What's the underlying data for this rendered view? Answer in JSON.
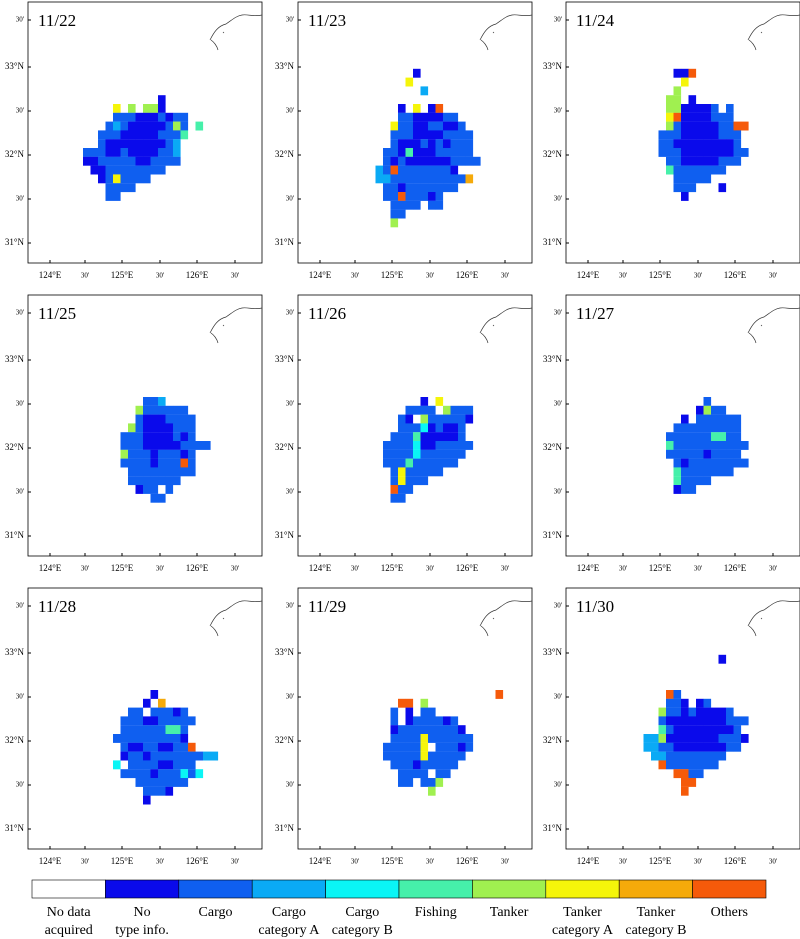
{
  "panels": [
    {
      "date": "11/22",
      "grid": [
        "",
        "",
        "",
        "",
        "..........1",
        "....7.6.661",
        "....2221112122",
        "...23211111262.5",
        "..222111112225",
        "..21111111123",
        "2221121111223",
        "1122222112222",
        ".1122222222",
        "..1272222",
        "...2222",
        "...22"
      ]
    },
    {
      "date": "11/23",
      "grid": [
        "",
        "........1",
        ".......7",
        ".........3",
        "",
        "......1.7.19",
        "......22111122",
        ".....7221122112",
        ".....22211112222",
        ".....21112121222",
        "....221511122222",
        "....2121111112222",
        "...32922222221",
        "...3322222222228",
        "....2212222222",
        "....22922212",
        ".....2222.22",
        ".....22",
        ".....6"
      ]
    },
    {
      "date": "11/24",
      "grid": [
        "",
        ".......119",
        "........7",
        ".......6",
        "......66.1",
        "......6611112.2",
        "......791111222",
        "......62111112299",
        ".....22211111222",
        ".....22111111112",
        ".....222111111122",
        "......2211111222",
        "......52222222",
        ".......22222",
        ".......222...1",
        "........1"
      ]
    },
    {
      "date": "11/25",
      "grid": [
        "",
        "",
        "",
        "",
        "",
        "........223",
        ".......6222222",
        ".......21112222",
        "......621111222",
        ".....2221111212",
        ".....222111112222",
        ".....6222122212",
        ".....2222122292",
        "......222222222",
        "......2222222",
        ".......122.2",
        ".........22"
      ]
    },
    {
      "date": "11/26",
      "grid": [
        "",
        "",
        "",
        "",
        "",
        ".........1.7",
        ".......2222.6222",
        "......21.6222221",
        "......222412112",
        ".....2225111112",
        "....222241122222",
        "....22224222222",
        "....2225222222",
        ".....2722222",
        ".....27222",
        ".....922",
        ".....22"
      ]
    },
    {
      "date": "11/27",
      "grid": [
        "",
        "",
        "",
        "",
        "",
        "...........2",
        "..........1622",
        "........1.222222",
        ".......222222222",
        "......2222225522",
        "......52222222222",
        "......2222212222",
        ".......2122222222",
        ".......52222222",
        ".......52222",
        ".......122"
      ]
    },
    {
      "date": "11/28",
      "grid": [
        "",
        "",
        "",
        "",
        "",
        ".........1",
        "........1.8",
        "......22.22212",
        ".....2221122222",
        ".....222222552",
        "....2222222221",
        ".....2112211229",
        ".....1221222222233",
        "....4.222211222",
        ".....22221222424",
        ".......2222222",
        "........2221",
        "........1"
      ]
    },
    {
      "date": "11/29",
      "grid": [
        "",
        "",
        "",
        "",
        "",
        "...................9",
        "......99.6",
        ".....2.1.22",
        ".....2.1222212",
        ".....1222222221",
        ".....22227222222",
        "....222227.22212",
        "....22222722222",
        ".....222122222",
        "......2222.22",
        "......22.226",
        "..........6"
      ]
    },
    {
      "date": "11/30",
      "grid": [
        "",
        ".............1",
        "",
        "",
        "",
        "......92",
        "......221.12",
        ".....6221211112",
        ".....211111111222",
        ".....52111111112",
        "...33611111112221",
        "...3322111111122",
        "....3322222222",
        ".....92222222",
        ".......9922",
        "........99",
        "........9"
      ]
    }
  ],
  "lat_labels": [
    "30'",
    "33°N",
    "30'",
    "32°N",
    "30'",
    "31°N"
  ],
  "lon_labels": [
    "124°E",
    "30'",
    "125°E",
    "30'",
    "126°E",
    "30'"
  ],
  "legend": [
    {
      "lines": [
        "No data",
        "acquired"
      ],
      "color": "#ffffff"
    },
    {
      "lines": [
        "No",
        "type info."
      ],
      "color": "#0a0aeb"
    },
    {
      "lines": [
        "Cargo"
      ],
      "color": "#0f5ff0"
    },
    {
      "lines": [
        "Cargo",
        "category A"
      ],
      "color": "#0aaaf5"
    },
    {
      "lines": [
        "Cargo",
        "category B"
      ],
      "color": "#0af5f5"
    },
    {
      "lines": [
        "Fishing"
      ],
      "color": "#46f0aa"
    },
    {
      "lines": [
        "Tanker"
      ],
      "color": "#a0f050"
    },
    {
      "lines": [
        "Tanker",
        "category A"
      ],
      "color": "#f5f50a"
    },
    {
      "lines": [
        "Tanker",
        "category B"
      ],
      "color": "#f5aa0a"
    },
    {
      "lines": [
        "Others"
      ],
      "color": "#f55a0a"
    }
  ]
}
